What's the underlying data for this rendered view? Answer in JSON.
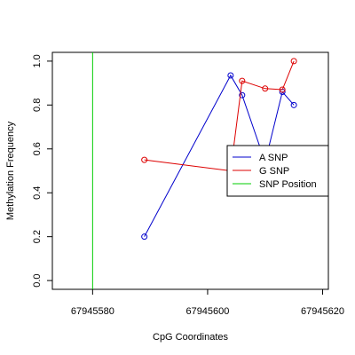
{
  "chart_data": {
    "type": "line",
    "title": "",
    "xlabel": "CpG Coordinates",
    "ylabel": "Methylation Frequency",
    "xlim": [
      67945573,
      67945621
    ],
    "ylim": [
      -0.04,
      1.04
    ],
    "x_ticks": [
      67945580,
      67945600,
      67945620
    ],
    "y_ticks": [
      0.0,
      0.2,
      0.4,
      0.6,
      0.8,
      1.0
    ],
    "y_tick_labels": [
      "0.0",
      "0.2",
      "0.4",
      "0.6",
      "0.8",
      "1.0"
    ],
    "grid": false,
    "legend_position": "right",
    "series": [
      {
        "name": "A SNP",
        "color": "#0000CC",
        "points": [
          {
            "x": 67945589,
            "y": 0.2
          },
          {
            "x": 67945604,
            "y": 0.935
          },
          {
            "x": 67945606,
            "y": 0.845
          },
          {
            "x": 67945610,
            "y": 0.54
          },
          {
            "x": 67945613,
            "y": 0.86
          },
          {
            "x": 67945615,
            "y": 0.8
          }
        ]
      },
      {
        "name": "G SNP",
        "color": "#DD0000",
        "points": [
          {
            "x": 67945589,
            "y": 0.55
          },
          {
            "x": 67945604,
            "y": 0.5
          },
          {
            "x": 67945606,
            "y": 0.91
          },
          {
            "x": 67945610,
            "y": 0.875
          },
          {
            "x": 67945613,
            "y": 0.87
          },
          {
            "x": 67945615,
            "y": 1.0
          }
        ]
      }
    ],
    "snp_position": {
      "name": "SNP Position",
      "x": 67945580,
      "color": "#00CC00"
    },
    "legend": {
      "entries": [
        "A SNP",
        "G SNP",
        "SNP Position"
      ],
      "colors": [
        "#0000CC",
        "#DD0000",
        "#00CC00"
      ]
    }
  }
}
